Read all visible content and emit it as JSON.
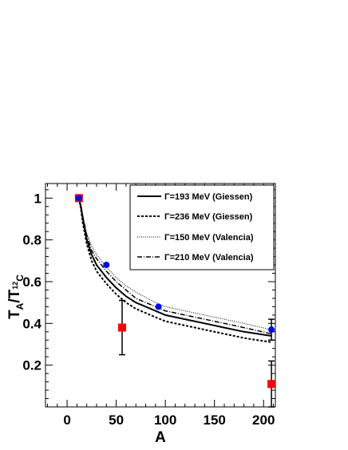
{
  "chart_data": {
    "type": "line",
    "xlabel": "A",
    "ylabel_main": "T",
    "ylabel_sub": "A",
    "ylabel_sep": "/T",
    "ylabel_sub2_sup": "12",
    "ylabel_sub2": "C",
    "xlim": [
      -22,
      212
    ],
    "ylim": [
      0.0,
      1.07
    ],
    "x_ticks": [
      0,
      50,
      100,
      150,
      200
    ],
    "x_tick_labels": [
      "0",
      "50",
      "100",
      "150",
      "200"
    ],
    "y_ticks": [
      0.2,
      0.4,
      0.6,
      0.8,
      1.0
    ],
    "y_tick_labels": [
      "0.2",
      "0.4",
      "0.6",
      "0.8",
      "1"
    ],
    "legend_placement": "top-right",
    "series": [
      {
        "name": "Γ=193 MeV (Giessen)",
        "style": "solid",
        "x": [
          12,
          14,
          16,
          20,
          25,
          30,
          40,
          50,
          60,
          70,
          90,
          100,
          120,
          140,
          160,
          180,
          208
        ],
        "values": [
          1.0,
          0.96,
          0.9,
          0.8,
          0.73,
          0.68,
          0.62,
          0.57,
          0.53,
          0.5,
          0.46,
          0.44,
          0.42,
          0.4,
          0.38,
          0.36,
          0.34
        ]
      },
      {
        "name": "Γ=236 MeV (Giessen)",
        "style": "dashed",
        "x": [
          12,
          14,
          16,
          20,
          25,
          30,
          40,
          50,
          60,
          70,
          90,
          100,
          120,
          140,
          160,
          180,
          208
        ],
        "values": [
          1.0,
          0.95,
          0.88,
          0.78,
          0.7,
          0.65,
          0.59,
          0.54,
          0.5,
          0.47,
          0.43,
          0.41,
          0.39,
          0.37,
          0.35,
          0.33,
          0.31
        ]
      },
      {
        "name": "Γ=150 MeV (Valencia)",
        "style": "dotted",
        "x": [
          12,
          14,
          16,
          20,
          25,
          30,
          40,
          50,
          60,
          70,
          90,
          100,
          120,
          140,
          160,
          180,
          208
        ],
        "values": [
          1.0,
          0.97,
          0.92,
          0.83,
          0.77,
          0.73,
          0.67,
          0.62,
          0.58,
          0.55,
          0.5,
          0.48,
          0.46,
          0.44,
          0.42,
          0.4,
          0.37
        ]
      },
      {
        "name": "Γ=210 MeV (Valencia)",
        "style": "dashdot",
        "x": [
          12,
          14,
          16,
          20,
          25,
          30,
          40,
          50,
          60,
          70,
          90,
          100,
          120,
          140,
          160,
          180,
          208
        ],
        "values": [
          1.0,
          0.965,
          0.91,
          0.82,
          0.75,
          0.71,
          0.65,
          0.6,
          0.56,
          0.52,
          0.48,
          0.46,
          0.44,
          0.42,
          0.4,
          0.38,
          0.35
        ]
      }
    ],
    "points_blue": {
      "color": "#0000ee",
      "x": [
        12,
        40,
        93,
        208
      ],
      "y": [
        1.0,
        0.68,
        0.48,
        0.37
      ],
      "err": [
        0.0,
        0.0,
        0.0,
        0.05
      ]
    },
    "points_red": {
      "color": "#ff0000",
      "x": [
        12,
        56,
        208
      ],
      "y": [
        1.0,
        0.38,
        0.11
      ],
      "err": [
        0.0,
        0.13,
        0.11
      ]
    }
  }
}
